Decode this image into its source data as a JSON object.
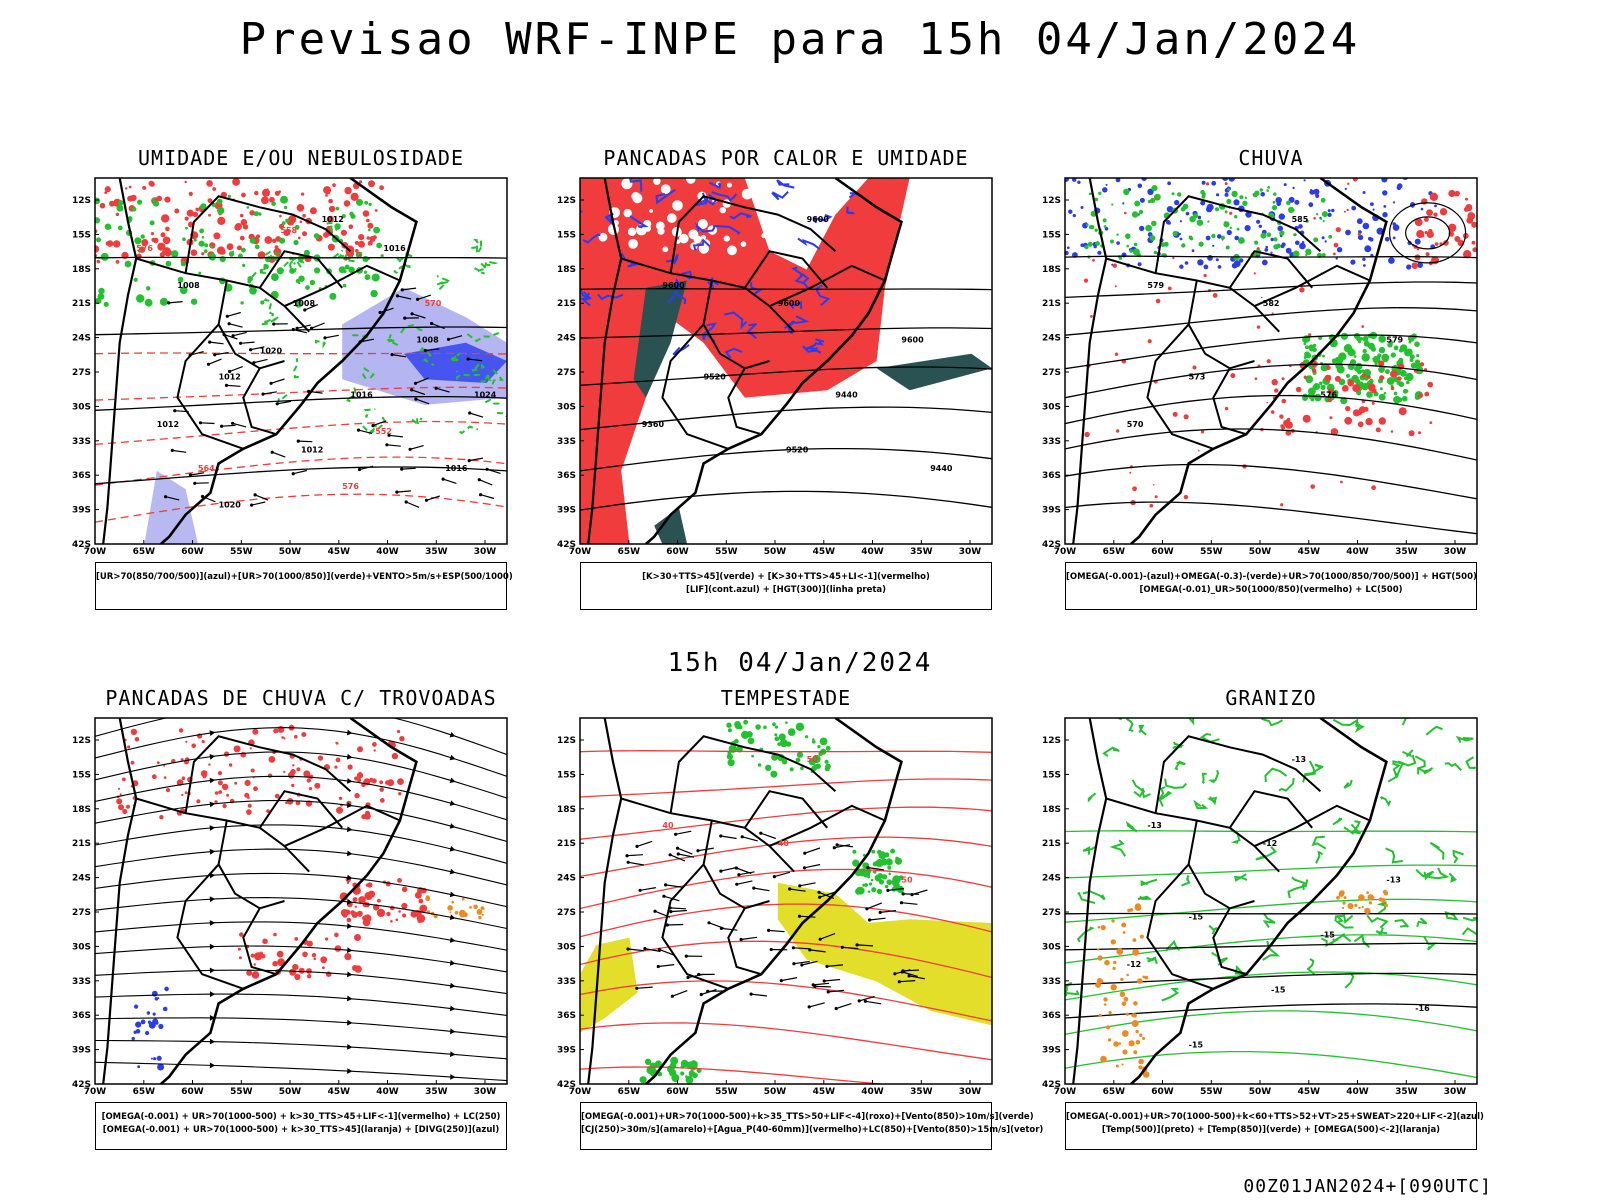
{
  "header": {
    "title": "Previsao WRF-INPE  para 15h 04/Jan/2024"
  },
  "mid_label": "15h 04/Jan/2024",
  "footer": "00Z01JAN2024+[090UTC]",
  "axes": {
    "lat_labels": [
      "12S",
      "15S",
      "18S",
      "21S",
      "24S",
      "27S",
      "30S",
      "33S",
      "36S",
      "39S",
      "42S"
    ],
    "lon_labels": [
      "70W",
      "65W",
      "60W",
      "55W",
      "50W",
      "45W",
      "40W",
      "35W",
      "30W"
    ]
  },
  "colors": {
    "red": "#f03c3c",
    "green": "#22c22e",
    "blue": "#2a3cf0",
    "lavender": "#a8a8ee",
    "teal": "#2b5252",
    "yellow": "#e2de2a",
    "orange": "#ee8a22"
  },
  "panels": [
    {
      "id": "umidade",
      "title": "UMIDADE E/OU NEBULOSIDADE",
      "legend": [
        "[UR>70(850/700/500)](azul)+[UR>70(1000/850)](verde)+VENTO>5m/s+ESP(500/1000)"
      ],
      "labels": [
        "1012",
        "1008",
        "1008",
        "1008",
        "1012",
        "1016",
        "1012",
        "1012",
        "1016",
        "1020",
        "1016",
        "1020",
        "1024",
        "576",
        "576",
        "570",
        "564",
        "558",
        "552"
      ]
    },
    {
      "id": "pancadas_calor",
      "title": "PANCADAS POR CALOR E UMIDADE",
      "legend": [
        "[K>30+TTS>45](verde) + [K>30+TTS>45+LI<-1](vermelho)",
        "[LIF](cont.azul) + [HGT(300)](linha preta)"
      ],
      "labels": [
        "9600",
        "9600",
        "9600",
        "9600",
        "9520",
        "9440",
        "9360",
        "9520",
        "9440"
      ]
    },
    {
      "id": "chuva",
      "title": "CHUVA",
      "legend": [
        "[OMEGA(-0.001)-(azul)+OMEGA(-0.3)-(verde)+UR>70(1000/850/700/500)] + HGT(500)",
        "[OMEGA(-0.01)_UR>50(1000/850)(vermelho) + LC(500)"
      ],
      "labels": [
        "585",
        "579",
        "582",
        "579",
        "573",
        "576",
        "570"
      ]
    },
    {
      "id": "pancadas_trovoadas",
      "title": "PANCADAS DE CHUVA C/ TROVOADAS",
      "legend": [
        "[OMEGA(-0.001) + UR>70(1000-500) + k>30_TTS>45+LIF<-1](vermelho) + LC(250)",
        "[OMEGA(-0.001) + UR>70(1000-500) + k>30_TTS>45](laranja) + [DIVG(250)](azul)"
      ],
      "labels": []
    },
    {
      "id": "tempestade",
      "title": "TEMPESTADE",
      "legend": [
        "[OMEGA(-0.001)+UR>70(1000-500)+k>35_TTS>50+LIF<-4](roxo)+[Vento(850)>10m/s](verde)",
        "[CJ(250)>30m/s](amarelo)+[Agua_P(40-60mm)](vermelho)+LC(850)+[Vento(850)>15m/s](vetor)"
      ],
      "labels": [
        "50",
        "40",
        "40",
        "50"
      ]
    },
    {
      "id": "granizo",
      "title": "GRANIZO",
      "legend": [
        "[OMEGA(-0.001)+UR>70(1000-500)+k<60+TTS>52+VT>25+SWEAT>220+LIF<-2](azul)",
        "[Temp(500)](preto) + [Temp(850)](verde) + [OMEGA(500)<-2](laranja)"
      ],
      "labels": [
        "-13",
        "-13",
        "-12",
        "-13",
        "-15",
        "-15",
        "-12",
        "-15",
        "-16",
        "-15"
      ]
    }
  ]
}
